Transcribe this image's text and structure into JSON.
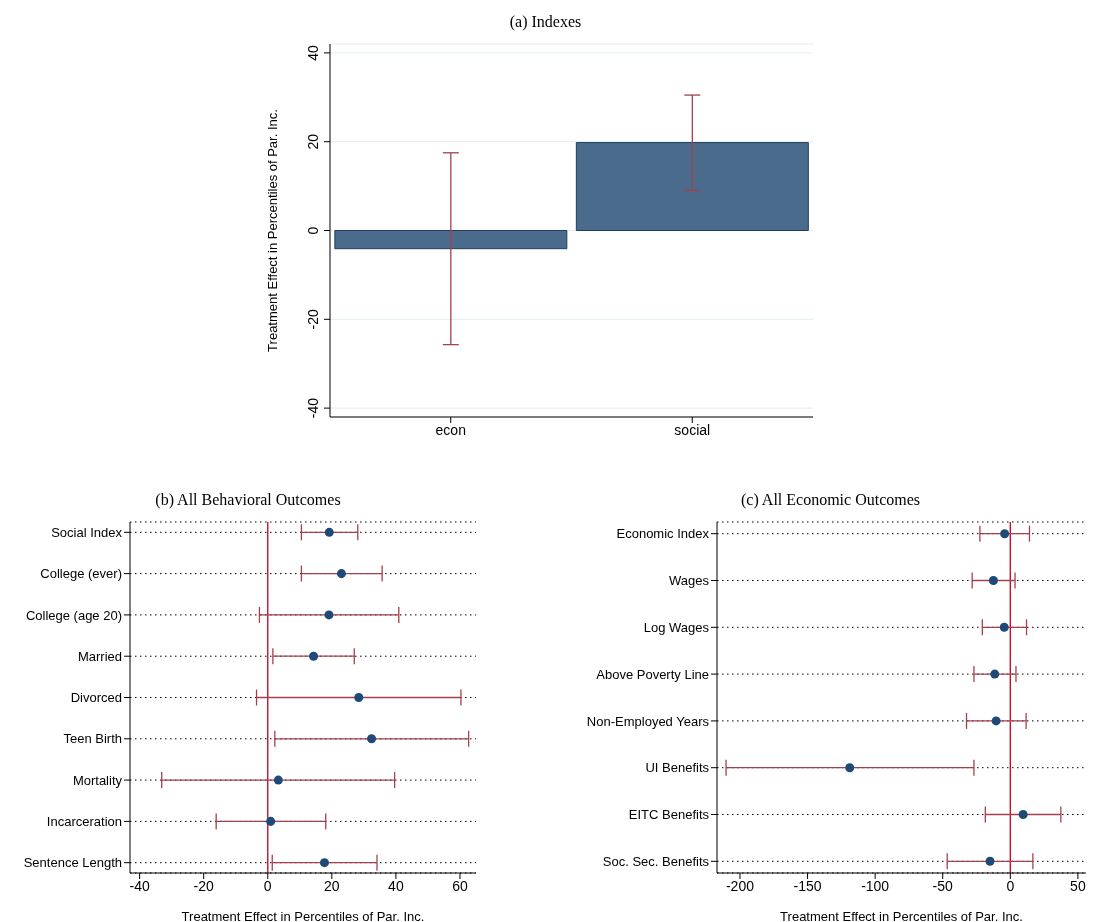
{
  "chart_data": [
    {
      "type": "bar",
      "title": "(a) Indexes",
      "ylabel": "Treatment Effect in Percentiles of Par. Inc.",
      "categories": [
        "econ",
        "social"
      ],
      "values": [
        -4.1,
        19.8
      ],
      "errors": [
        [
          -25.7,
          17.5
        ],
        [
          9.0,
          30.5
        ]
      ],
      "color": "#4a6b8c",
      "ylim": [
        -42,
        42
      ],
      "yticks": [
        -40,
        -20,
        0,
        20,
        40
      ],
      "grid": "y"
    },
    {
      "type": "scatter",
      "orientation": "horizontal",
      "title": "(b) All Behavioral Outcomes",
      "xlabel": "Treatment Effect in Percentiles of Par. Inc.",
      "categories": [
        "Social Index",
        "College (ever)",
        "College (age 20)",
        "Married",
        "Divorced",
        "Teen Birth",
        "Mortality",
        "Incarceration",
        "Sentence Length"
      ],
      "values": [
        19.2,
        23.0,
        19.1,
        14.3,
        28.4,
        32.4,
        3.3,
        0.9,
        17.7
      ],
      "errors": [
        [
          10.5,
          28.1
        ],
        [
          10.5,
          35.7
        ],
        [
          -2.6,
          40.9
        ],
        [
          1.6,
          27.0
        ],
        [
          -3.5,
          60.3
        ],
        [
          2.2,
          62.7
        ],
        [
          -33.1,
          39.6
        ],
        [
          -16.1,
          18.1
        ],
        [
          1.4,
          34.1
        ]
      ],
      "color": "#1f4a78",
      "marker": "circle",
      "xlim": [
        -43,
        65
      ],
      "xticks": [
        -40,
        -20,
        0,
        20,
        40,
        60
      ],
      "grid": "y",
      "ref_lines": [
        {
          "axis": "x",
          "value": 0,
          "color": "#c8102e"
        }
      ]
    },
    {
      "type": "scatter",
      "orientation": "horizontal",
      "title": "(c) All Economic Outcomes",
      "xlabel": "Treatment Effect in Percentiles of Par. Inc.",
      "categories": [
        "Economic Index",
        "Wages",
        "Log Wages",
        "Above Poverty Line",
        "Non-Employed Years",
        "UI Benefits",
        "EITC Benefits",
        "Soc. Sec. Benefits"
      ],
      "values": [
        -4.2,
        -12.5,
        -4.5,
        -11.5,
        -10.5,
        -118.8,
        9.5,
        -15.0
      ],
      "errors": [
        [
          -22.5,
          14.2
        ],
        [
          -28.2,
          3.5
        ],
        [
          -20.7,
          12.0
        ],
        [
          -26.9,
          4.2
        ],
        [
          -32.4,
          11.7
        ],
        [
          -210.3,
          -26.9
        ],
        [
          -18.5,
          37.4
        ],
        [
          -46.7,
          16.7
        ]
      ],
      "color": "#1f4a78",
      "marker": "circle",
      "xlim": [
        -217,
        56
      ],
      "xticks": [
        -200,
        -150,
        -100,
        -50,
        0,
        50
      ],
      "grid": "y",
      "ref_lines": [
        {
          "axis": "x",
          "value": 0,
          "color": "#c8102e"
        }
      ]
    }
  ]
}
